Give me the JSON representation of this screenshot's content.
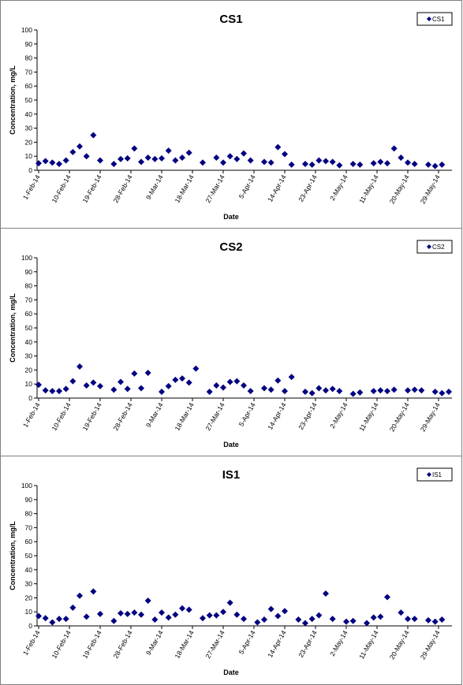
{
  "colors": {
    "marker": "#000080",
    "axis": "#000000"
  },
  "chart_data": [
    {
      "type": "scatter",
      "title": "CS1",
      "xlabel": "Date",
      "ylabel": "Concentration, mg/L",
      "ylim": [
        0,
        100
      ],
      "yticks": [
        0,
        10,
        20,
        30,
        40,
        50,
        60,
        70,
        80,
        90,
        100
      ],
      "xlim": [
        "2014-02-01",
        "2014-06-01"
      ],
      "xtick_labels": [
        "1-Feb-14",
        "10-Feb-14",
        "19-Feb-14",
        "28-Feb-14",
        "9-Mar-14",
        "18-Mar-14",
        "27-Mar-14",
        "5-Apr-14",
        "14-Apr-14",
        "23-Apr-14",
        "2-May-14",
        "11-May-14",
        "20-May-14",
        "29-May-14"
      ],
      "grid": false,
      "legend_position": "top-right",
      "series": [
        {
          "name": "CS1",
          "marker": "diamond",
          "points": [
            [
              "2014-02-01",
              5
            ],
            [
              "2014-02-03",
              6.5
            ],
            [
              "2014-02-05",
              5.5
            ],
            [
              "2014-02-07",
              4.5
            ],
            [
              "2014-02-09",
              7
            ],
            [
              "2014-02-11",
              13
            ],
            [
              "2014-02-13",
              17
            ],
            [
              "2014-02-15",
              10
            ],
            [
              "2014-02-17",
              25
            ],
            [
              "2014-02-19",
              7
            ],
            [
              "2014-02-23",
              4.5
            ],
            [
              "2014-02-25",
              8
            ],
            [
              "2014-02-27",
              8.5
            ],
            [
              "2014-03-01",
              15.5
            ],
            [
              "2014-03-03",
              6
            ],
            [
              "2014-03-05",
              9
            ],
            [
              "2014-03-07",
              8
            ],
            [
              "2014-03-09",
              8.5
            ],
            [
              "2014-03-11",
              14
            ],
            [
              "2014-03-13",
              7
            ],
            [
              "2014-03-15",
              9
            ],
            [
              "2014-03-17",
              12.5
            ],
            [
              "2014-03-21",
              5.5
            ],
            [
              "2014-03-25",
              9
            ],
            [
              "2014-03-27",
              5.5
            ],
            [
              "2014-03-29",
              10
            ],
            [
              "2014-03-31",
              8
            ],
            [
              "2014-04-02",
              12
            ],
            [
              "2014-04-04",
              7
            ],
            [
              "2014-04-08",
              6
            ],
            [
              "2014-04-10",
              5.5
            ],
            [
              "2014-04-12",
              16.5
            ],
            [
              "2014-04-14",
              11.5
            ],
            [
              "2014-04-16",
              4
            ],
            [
              "2014-04-20",
              4.5
            ],
            [
              "2014-04-22",
              4
            ],
            [
              "2014-04-24",
              7
            ],
            [
              "2014-04-26",
              6.5
            ],
            [
              "2014-04-28",
              6
            ],
            [
              "2014-04-30",
              3.5
            ],
            [
              "2014-05-04",
              4.5
            ],
            [
              "2014-05-06",
              4
            ],
            [
              "2014-05-10",
              5
            ],
            [
              "2014-05-12",
              6
            ],
            [
              "2014-05-14",
              5
            ],
            [
              "2014-05-16",
              15.5
            ],
            [
              "2014-05-18",
              9
            ],
            [
              "2014-05-20",
              5.5
            ],
            [
              "2014-05-22",
              4.5
            ],
            [
              "2014-05-26",
              4
            ],
            [
              "2014-05-28",
              3
            ],
            [
              "2014-05-30",
              4
            ]
          ]
        }
      ]
    },
    {
      "type": "scatter",
      "title": "CS2",
      "xlabel": "Date",
      "ylabel": "Concentration, mg/L",
      "ylim": [
        0,
        100
      ],
      "yticks": [
        0,
        10,
        20,
        30,
        40,
        50,
        60,
        70,
        80,
        90,
        100
      ],
      "xlim": [
        "2014-02-01",
        "2014-06-01"
      ],
      "xtick_labels": [
        "1-Feb-14",
        "10-Feb-14",
        "19-Feb-14",
        "28-Feb-14",
        "9-Mar-14",
        "18-Mar-14",
        "27-Mar-14",
        "5-Apr-14",
        "14-Apr-14",
        "23-Apr-14",
        "2-May-14",
        "11-May-14",
        "20-May-14",
        "29-May-14"
      ],
      "grid": false,
      "legend_position": "top-right",
      "series": [
        {
          "name": "CS2",
          "marker": "diamond",
          "points": [
            [
              "2014-02-01",
              9.5
            ],
            [
              "2014-02-03",
              5.5
            ],
            [
              "2014-02-05",
              5
            ],
            [
              "2014-02-07",
              5
            ],
            [
              "2014-02-09",
              6.5
            ],
            [
              "2014-02-11",
              12
            ],
            [
              "2014-02-13",
              22.5
            ],
            [
              "2014-02-15",
              9
            ],
            [
              "2014-02-17",
              11
            ],
            [
              "2014-02-19",
              8.5
            ],
            [
              "2014-02-23",
              6
            ],
            [
              "2014-02-25",
              11.5
            ],
            [
              "2014-02-27",
              6.5
            ],
            [
              "2014-03-01",
              17.5
            ],
            [
              "2014-03-03",
              7
            ],
            [
              "2014-03-05",
              18
            ],
            [
              "2014-03-09",
              4.5
            ],
            [
              "2014-03-11",
              8.5
            ],
            [
              "2014-03-13",
              13
            ],
            [
              "2014-03-15",
              14
            ],
            [
              "2014-03-17",
              11
            ],
            [
              "2014-03-19",
              21
            ],
            [
              "2014-03-23",
              4.5
            ],
            [
              "2014-03-25",
              9
            ],
            [
              "2014-03-27",
              7.5
            ],
            [
              "2014-03-29",
              11.5
            ],
            [
              "2014-03-31",
              12
            ],
            [
              "2014-04-02",
              9
            ],
            [
              "2014-04-04",
              5
            ],
            [
              "2014-04-08",
              7
            ],
            [
              "2014-04-10",
              6
            ],
            [
              "2014-04-12",
              12.5
            ],
            [
              "2014-04-14",
              5
            ],
            [
              "2014-04-16",
              15
            ],
            [
              "2014-04-20",
              4.5
            ],
            [
              "2014-04-22",
              3.5
            ],
            [
              "2014-04-24",
              7
            ],
            [
              "2014-04-26",
              5.5
            ],
            [
              "2014-04-28",
              6.5
            ],
            [
              "2014-04-30",
              5
            ],
            [
              "2014-05-04",
              3
            ],
            [
              "2014-05-06",
              4
            ],
            [
              "2014-05-10",
              5
            ],
            [
              "2014-05-12",
              5.5
            ],
            [
              "2014-05-14",
              5
            ],
            [
              "2014-05-16",
              6
            ],
            [
              "2014-05-20",
              5.5
            ],
            [
              "2014-05-22",
              6
            ],
            [
              "2014-05-24",
              5.5
            ],
            [
              "2014-05-28",
              4.5
            ],
            [
              "2014-05-30",
              3.5
            ],
            [
              "2014-06-01",
              4.5
            ]
          ]
        }
      ]
    },
    {
      "type": "scatter",
      "title": "IS1",
      "xlabel": "Date",
      "ylabel": "Concentration, mg/L",
      "ylim": [
        0,
        100
      ],
      "yticks": [
        0,
        10,
        20,
        30,
        40,
        50,
        60,
        70,
        80,
        90,
        100
      ],
      "xlim": [
        "2014-02-01",
        "2014-06-01"
      ],
      "xtick_labels": [
        "1-Feb-14",
        "10-Feb-14",
        "19-Feb-14",
        "28-Feb-14",
        "9-Mar-14",
        "18-Mar-14",
        "27-Mar-14",
        "5-Apr-14",
        "14-Apr-14",
        "23-Apr-14",
        "2-May-14",
        "11-May-14",
        "20-May-14",
        "29-May-14"
      ],
      "grid": false,
      "legend_position": "top-right",
      "series": [
        {
          "name": "IS1",
          "marker": "diamond",
          "points": [
            [
              "2014-02-01",
              7
            ],
            [
              "2014-02-03",
              5.5
            ],
            [
              "2014-02-05",
              2.5
            ],
            [
              "2014-02-07",
              5
            ],
            [
              "2014-02-09",
              5
            ],
            [
              "2014-02-11",
              13
            ],
            [
              "2014-02-13",
              21.5
            ],
            [
              "2014-02-15",
              6.5
            ],
            [
              "2014-02-17",
              24.5
            ],
            [
              "2014-02-19",
              8.5
            ],
            [
              "2014-02-23",
              3.5
            ],
            [
              "2014-02-25",
              9
            ],
            [
              "2014-02-27",
              8.5
            ],
            [
              "2014-03-01",
              9.5
            ],
            [
              "2014-03-03",
              8
            ],
            [
              "2014-03-05",
              18
            ],
            [
              "2014-03-07",
              4.5
            ],
            [
              "2014-03-09",
              9.5
            ],
            [
              "2014-03-11",
              6
            ],
            [
              "2014-03-13",
              8
            ],
            [
              "2014-03-15",
              12.5
            ],
            [
              "2014-03-17",
              11.5
            ],
            [
              "2014-03-21",
              5.5
            ],
            [
              "2014-03-23",
              7.5
            ],
            [
              "2014-03-25",
              7.5
            ],
            [
              "2014-03-27",
              10
            ],
            [
              "2014-03-29",
              16.5
            ],
            [
              "2014-03-31",
              8
            ],
            [
              "2014-04-02",
              5
            ],
            [
              "2014-04-06",
              2.5
            ],
            [
              "2014-04-08",
              4.5
            ],
            [
              "2014-04-10",
              12
            ],
            [
              "2014-04-12",
              7
            ],
            [
              "2014-04-14",
              10.5
            ],
            [
              "2014-04-18",
              4.5
            ],
            [
              "2014-04-20",
              2
            ],
            [
              "2014-04-22",
              5
            ],
            [
              "2014-04-24",
              7.5
            ],
            [
              "2014-04-26",
              23
            ],
            [
              "2014-04-28",
              5
            ],
            [
              "2014-05-02",
              3
            ],
            [
              "2014-05-04",
              3.5
            ],
            [
              "2014-05-08",
              2
            ],
            [
              "2014-05-10",
              6
            ],
            [
              "2014-05-12",
              6.5
            ],
            [
              "2014-05-14",
              20.5
            ],
            [
              "2014-05-18",
              9.5
            ],
            [
              "2014-05-20",
              5
            ],
            [
              "2014-05-22",
              5
            ],
            [
              "2014-05-26",
              4
            ],
            [
              "2014-05-28",
              3
            ],
            [
              "2014-05-30",
              4.5
            ]
          ]
        }
      ]
    }
  ]
}
